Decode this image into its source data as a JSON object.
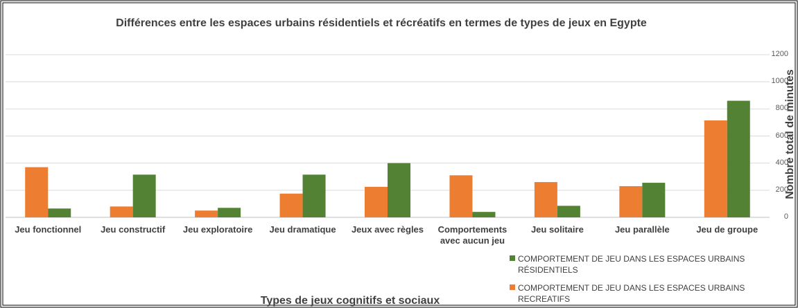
{
  "chart_data": {
    "type": "bar",
    "title": "Différences entre les espaces urbains résidentiels et récréatifs en termes de types de jeux en Egypte",
    "x_label": "Types de jeux cognitifs et sociaux",
    "y_label": "Nombre total de minutes",
    "categories": [
      "Jeu fonctionnel",
      "Jeu constructif",
      "Jeu exploratoire",
      "Jeu dramatique",
      "Jeux avec règles",
      "Comportements avec aucun jeu",
      "Jeu solitaire",
      "Jeu parallèle",
      "Jeu de groupe"
    ],
    "series": [
      {
        "name": "COMPORTEMENT DE JEU DANS LES ESPACES URBAINS RÉSIDENTIELS",
        "color": "#548235",
        "values": [
          65,
          315,
          70,
          315,
          400,
          40,
          85,
          255,
          860
        ]
      },
      {
        "name": "COMPORTEMENT DE JEU DANS LES ESPACES URBAINS RECREATIFS",
        "color": "#ed7d31",
        "values": [
          370,
          80,
          50,
          175,
          225,
          310,
          260,
          230,
          715
        ]
      }
    ],
    "ylim": [
      0,
      1200
    ],
    "yticks": [
      0,
      200,
      400,
      600,
      800,
      1000,
      1200
    ],
    "grid": true,
    "legend": "bottom-right"
  }
}
